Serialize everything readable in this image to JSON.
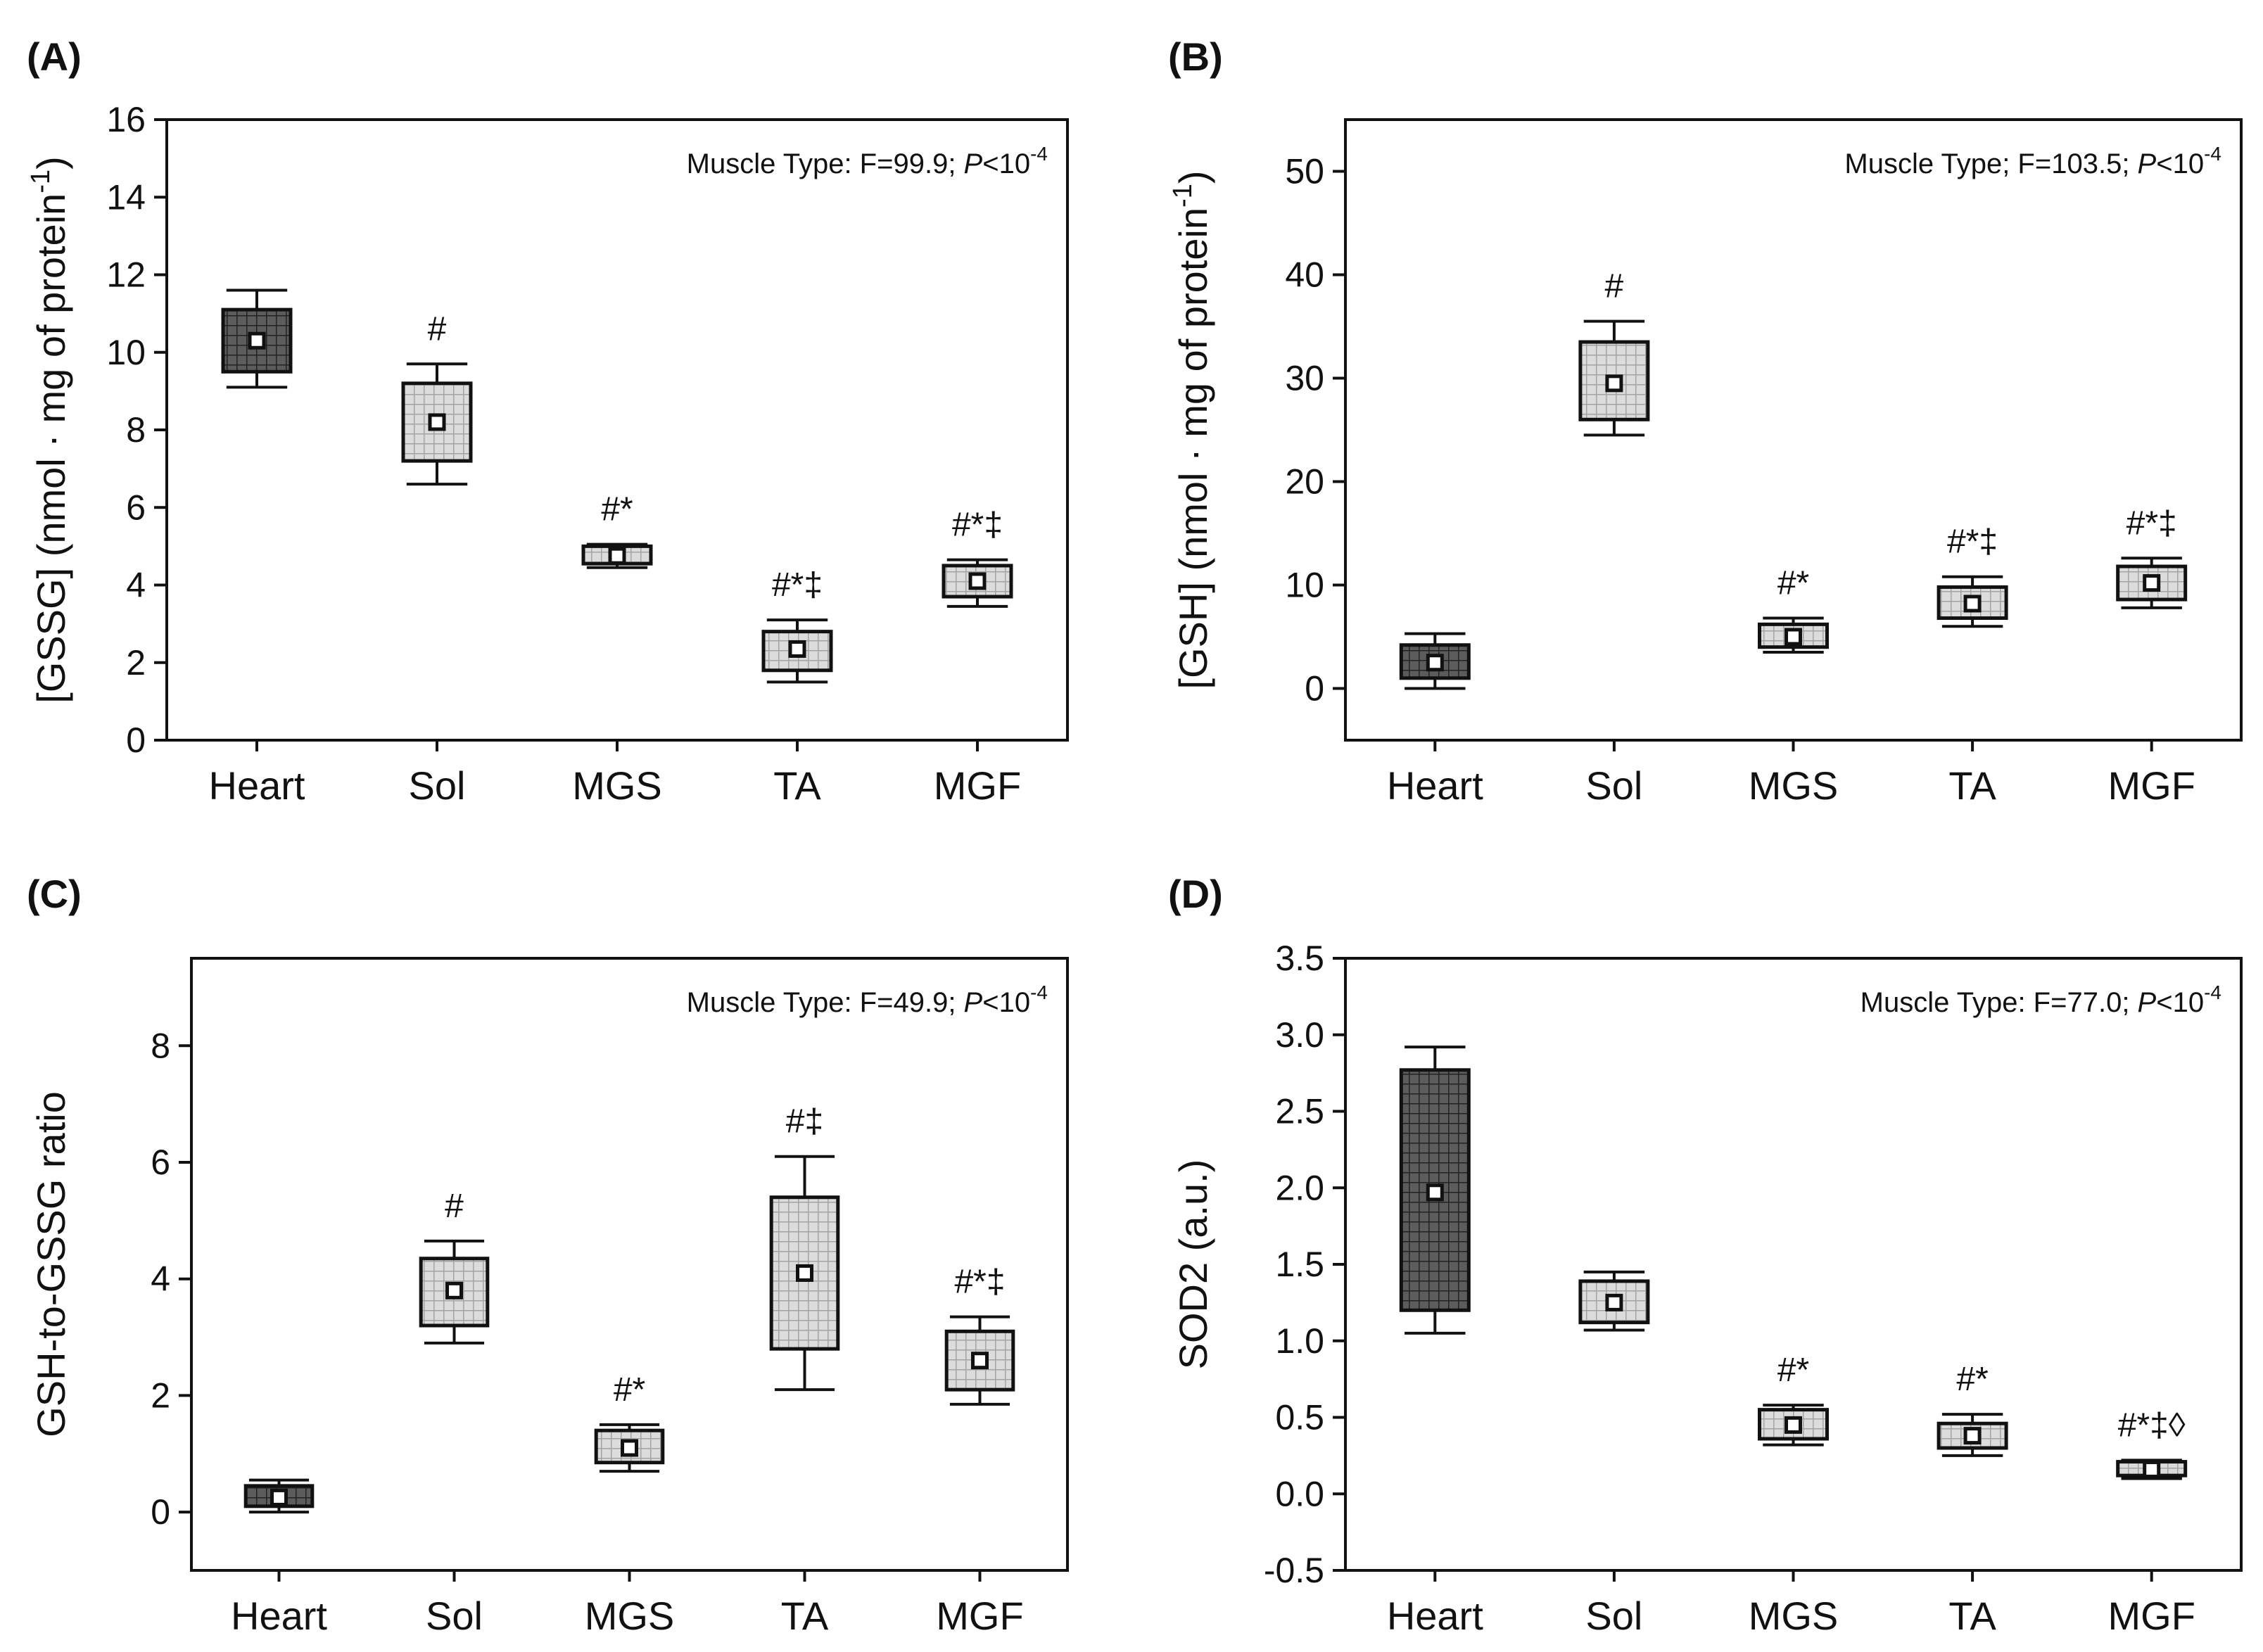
{
  "chart_data": [
    {
      "panel": "(A)",
      "type": "box",
      "categories": [
        "Heart",
        "Sol",
        "MGS",
        "TA",
        "MGF"
      ],
      "ylabel": "[GSSG] (nmol · mg of protein⁻¹)",
      "ylabel_parts": {
        "main": "[GSSG] (nmol · mg of protein",
        "sup": "-1",
        "close": ")"
      },
      "ylim": [
        0,
        16
      ],
      "yticks": [
        0,
        2,
        4,
        6,
        8,
        10,
        12,
        14,
        16
      ],
      "annotation": {
        "prefix": "Muscle Type: F=99.9; ",
        "p": "P",
        "rel": "<10",
        "exp": "-4"
      },
      "boxes": [
        {
          "category": "Heart",
          "whisker_low": 9.1,
          "q1": 9.5,
          "mean": 10.3,
          "q3": 11.1,
          "whisker_high": 11.6,
          "sig": ""
        },
        {
          "category": "Sol",
          "whisker_low": 6.6,
          "q1": 7.2,
          "mean": 8.2,
          "q3": 9.2,
          "whisker_high": 9.7,
          "sig": "#"
        },
        {
          "category": "MGS",
          "whisker_low": 4.45,
          "q1": 4.55,
          "mean": 4.75,
          "q3": 5.0,
          "whisker_high": 5.05,
          "sig": "#*"
        },
        {
          "category": "TA",
          "whisker_low": 1.5,
          "q1": 1.8,
          "mean": 2.35,
          "q3": 2.8,
          "whisker_high": 3.1,
          "sig": "#*‡"
        },
        {
          "category": "MGF",
          "whisker_low": 3.45,
          "q1": 3.7,
          "mean": 4.1,
          "q3": 4.5,
          "whisker_high": 4.65,
          "sig": "#*‡"
        }
      ]
    },
    {
      "panel": "(B)",
      "type": "box",
      "categories": [
        "Heart",
        "Sol",
        "MGS",
        "TA",
        "MGF"
      ],
      "ylabel": "[GSH] (nmol · mg of protein⁻¹)",
      "ylabel_parts": {
        "main": "[GSH] (nmol · mg of protein",
        "sup": "-1",
        "close": ")"
      },
      "ylim": [
        -5,
        55
      ],
      "yticks": [
        0,
        10,
        20,
        30,
        40,
        50
      ],
      "annotation": {
        "prefix": "Muscle Type; F=103.5; ",
        "p": "P",
        "rel": "<10",
        "exp": "-4"
      },
      "boxes": [
        {
          "category": "Heart",
          "whisker_low": 0.0,
          "q1": 1.0,
          "mean": 2.5,
          "q3": 4.2,
          "whisker_high": 5.3,
          "sig": ""
        },
        {
          "category": "Sol",
          "whisker_low": 24.5,
          "q1": 26.0,
          "mean": 29.5,
          "q3": 33.5,
          "whisker_high": 35.5,
          "sig": "#"
        },
        {
          "category": "MGS",
          "whisker_low": 3.5,
          "q1": 4.0,
          "mean": 5.0,
          "q3": 6.2,
          "whisker_high": 6.8,
          "sig": "#*"
        },
        {
          "category": "TA",
          "whisker_low": 6.0,
          "q1": 6.8,
          "mean": 8.2,
          "q3": 9.8,
          "whisker_high": 10.8,
          "sig": "#*‡"
        },
        {
          "category": "MGF",
          "whisker_low": 7.8,
          "q1": 8.6,
          "mean": 10.2,
          "q3": 11.8,
          "whisker_high": 12.6,
          "sig": "#*‡"
        }
      ]
    },
    {
      "panel": "(C)",
      "type": "box",
      "categories": [
        "Heart",
        "Sol",
        "MGS",
        "TA",
        "MGF"
      ],
      "ylabel": "GSH-to-GSSG ratio",
      "ylabel_parts": {
        "main": "GSH-to-GSSG ratio",
        "sup": "",
        "close": ""
      },
      "ylim": [
        -1,
        9.5
      ],
      "yticks": [
        0,
        2,
        4,
        6,
        8
      ],
      "annotation": {
        "prefix": "Muscle Type: F=49.9; ",
        "p": "P",
        "rel": "<10",
        "exp": "-4"
      },
      "boxes": [
        {
          "category": "Heart",
          "whisker_low": 0.0,
          "q1": 0.1,
          "mean": 0.25,
          "q3": 0.45,
          "whisker_high": 0.55,
          "sig": ""
        },
        {
          "category": "Sol",
          "whisker_low": 2.9,
          "q1": 3.2,
          "mean": 3.8,
          "q3": 4.35,
          "whisker_high": 4.65,
          "sig": "#"
        },
        {
          "category": "MGS",
          "whisker_low": 0.7,
          "q1": 0.85,
          "mean": 1.1,
          "q3": 1.4,
          "whisker_high": 1.5,
          "sig": "#*"
        },
        {
          "category": "TA",
          "whisker_low": 2.1,
          "q1": 2.8,
          "mean": 4.1,
          "q3": 5.4,
          "whisker_high": 6.1,
          "sig": "#‡"
        },
        {
          "category": "MGF",
          "whisker_low": 1.85,
          "q1": 2.1,
          "mean": 2.6,
          "q3": 3.1,
          "whisker_high": 3.35,
          "sig": "#*‡"
        }
      ]
    },
    {
      "panel": "(D)",
      "type": "box",
      "categories": [
        "Heart",
        "Sol",
        "MGS",
        "TA",
        "MGF"
      ],
      "ylabel": "SOD2 (a.u.)",
      "ylabel_parts": {
        "main": "SOD2 (a.u.)",
        "sup": "",
        "close": ""
      },
      "ylim": [
        -0.5,
        3.5
      ],
      "yticks": [
        -0.5,
        0.0,
        0.5,
        1.0,
        1.5,
        2.0,
        2.5,
        3.0,
        3.5
      ],
      "tickformat": "fixed1",
      "annotation": {
        "prefix": "Muscle Type: F=77.0; ",
        "p": "P",
        "rel": "<10",
        "exp": "-4"
      },
      "boxes": [
        {
          "category": "Heart",
          "whisker_low": 1.05,
          "q1": 1.2,
          "mean": 1.97,
          "q3": 2.77,
          "whisker_high": 2.92,
          "sig": ""
        },
        {
          "category": "Sol",
          "whisker_low": 1.07,
          "q1": 1.12,
          "mean": 1.25,
          "q3": 1.39,
          "whisker_high": 1.45,
          "sig": ""
        },
        {
          "category": "MGS",
          "whisker_low": 0.32,
          "q1": 0.36,
          "mean": 0.45,
          "q3": 0.55,
          "whisker_high": 0.58,
          "sig": "#*"
        },
        {
          "category": "TA",
          "whisker_low": 0.25,
          "q1": 0.3,
          "mean": 0.38,
          "q3": 0.46,
          "whisker_high": 0.52,
          "sig": "#*"
        },
        {
          "category": "MGF",
          "whisker_low": 0.1,
          "q1": 0.12,
          "mean": 0.16,
          "q3": 0.21,
          "whisker_high": 0.22,
          "sig": "#*‡◊"
        }
      ]
    }
  ],
  "colors": {
    "heart_fill": "#5c5c5c",
    "heart_grid": "#2a2a2a",
    "other_fill": "#dadada",
    "other_grid": "#9a9a9a",
    "axis": "#111111"
  }
}
